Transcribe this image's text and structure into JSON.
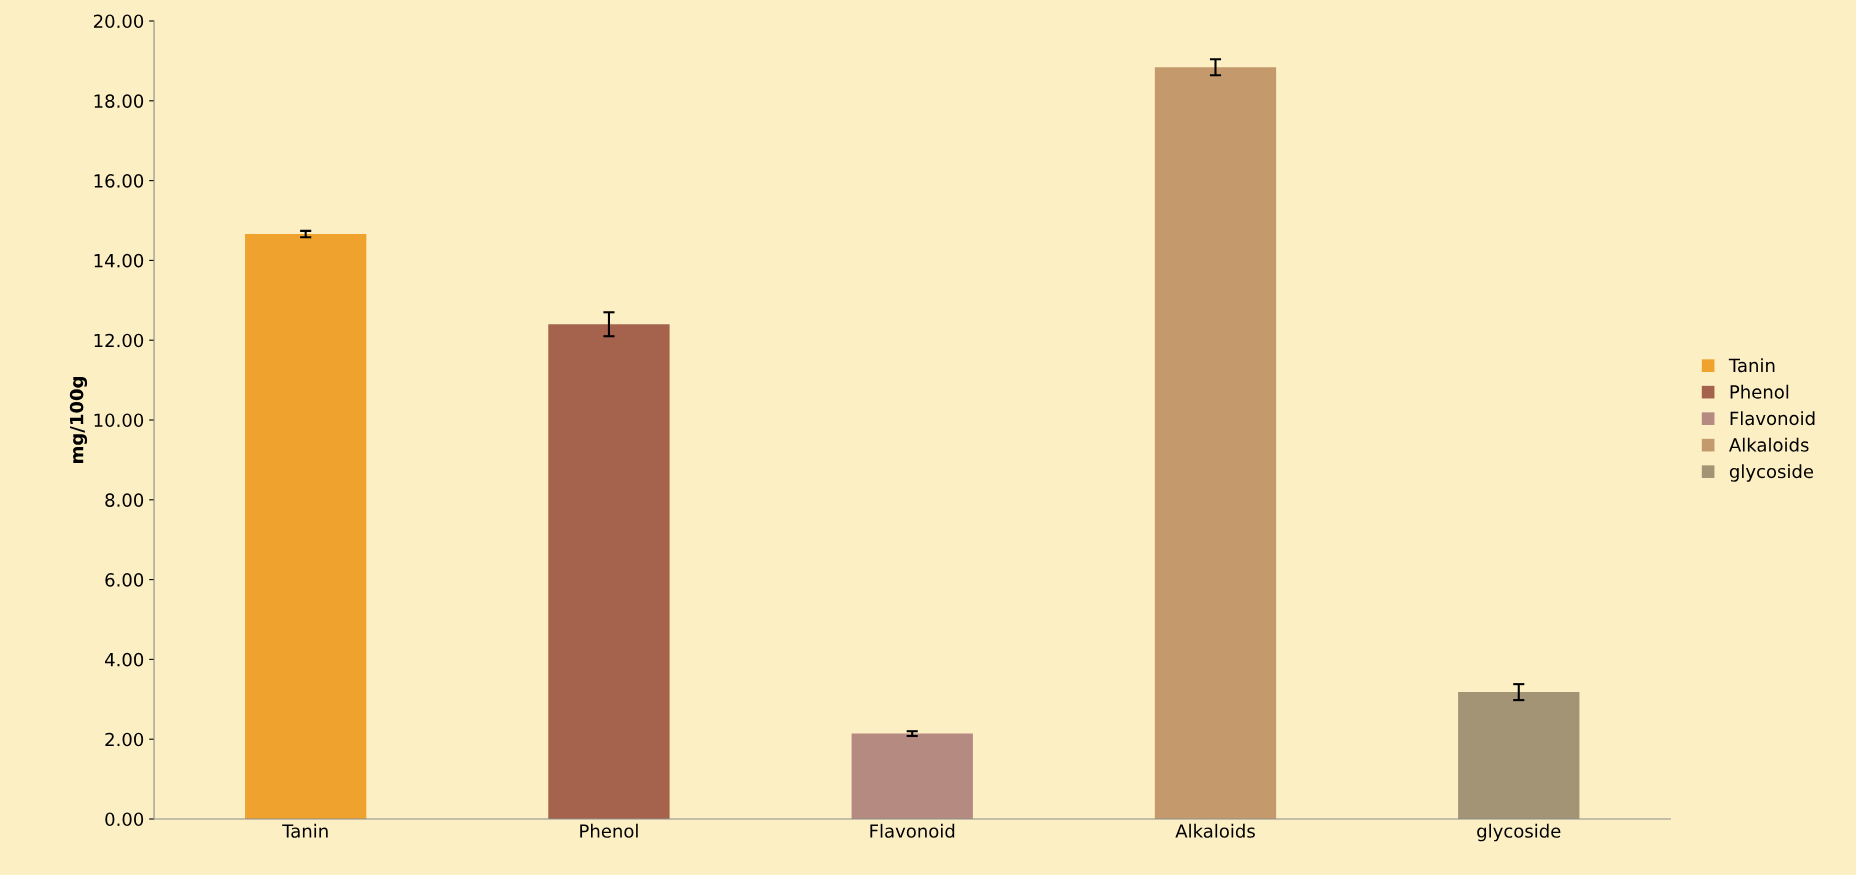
{
  "chart_data": {
    "type": "bar",
    "ylabel": "mg/100g",
    "categories": [
      "Tanin",
      "Phenol",
      "Flavonoid",
      "Alkaloids",
      "glycoside"
    ],
    "series": [
      {
        "name": "Tanin",
        "color": "#efa22e",
        "values": [
          14.66,
          null,
          null,
          null,
          null
        ],
        "errors": [
          0.08,
          null,
          null,
          null,
          null
        ]
      },
      {
        "name": "Phenol",
        "color": "#a5624d",
        "values": [
          null,
          12.4,
          null,
          null,
          null
        ],
        "errors": [
          null,
          0.3,
          null,
          null,
          null
        ]
      },
      {
        "name": "Flavonoid",
        "color": "#b58a80",
        "values": [
          null,
          null,
          2.14,
          null,
          null
        ],
        "errors": [
          null,
          null,
          0.06,
          null,
          null
        ]
      },
      {
        "name": "Alkaloids",
        "color": "#c49a6c",
        "values": [
          null,
          null,
          null,
          18.84,
          null
        ],
        "errors": [
          null,
          null,
          null,
          0.2,
          null
        ]
      },
      {
        "name": "glycoside",
        "color": "#a29474",
        "values": [
          null,
          null,
          null,
          null,
          3.18
        ],
        "errors": [
          null,
          null,
          null,
          null,
          0.2
        ]
      }
    ],
    "ylim": [
      0,
      20
    ],
    "yticks": [
      {
        "value": 0,
        "label": "0.00"
      },
      {
        "value": 2,
        "label": "2.00"
      },
      {
        "value": 4,
        "label": "4.00"
      },
      {
        "value": 6,
        "label": "6.00"
      },
      {
        "value": 8,
        "label": "8.00"
      },
      {
        "value": 10,
        "label": "10.00"
      },
      {
        "value": 12,
        "label": "12.00"
      },
      {
        "value": 14,
        "label": "14.00"
      },
      {
        "value": 16,
        "label": "16.00"
      },
      {
        "value": 18,
        "label": "18.00"
      },
      {
        "value": 20,
        "label": "20.00"
      }
    ],
    "grid": false,
    "legend": "right"
  }
}
